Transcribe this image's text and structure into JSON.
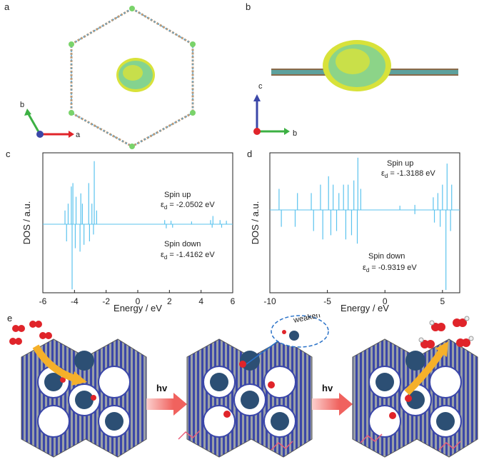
{
  "panels": {
    "a": {
      "letter": "a",
      "axis_b": "b",
      "axis_a": "a"
    },
    "b": {
      "letter": "b",
      "axis_c": "c",
      "axis_b": "b"
    },
    "c": {
      "letter": "c"
    },
    "d": {
      "letter": "d"
    },
    "e": {
      "letter": "e",
      "hv1": "hv",
      "hv2": "hv",
      "weaken": "weaken"
    }
  },
  "colors": {
    "line": "#5bc3ee",
    "yellow": "#d8e23a",
    "cyan": "#3fc6d6",
    "frame_blue": "#3b47a8",
    "frame_gray": "#9aa0a6",
    "cluster": "#2c4f74",
    "o_red": "#e0242a",
    "arrow_red": "#f0625e",
    "arrow_orange": "#f5b02a"
  },
  "chart_data": [
    {
      "id": "c",
      "type": "line",
      "title": "",
      "xlabel": "Energy / eV",
      "ylabel": "DOS / a.u.",
      "xlim": [
        -6,
        6
      ],
      "xticks": [
        "-6",
        "-4",
        "-2",
        "0",
        "2",
        "4",
        "6"
      ],
      "annotations": [
        {
          "label": "Spin up",
          "value": "ε",
          "sub": "d",
          "eq": " = -2.0502 eV"
        },
        {
          "label": "Spin down",
          "value": "ε",
          "sub": "d",
          "eq": " = -1.4162 eV"
        }
      ],
      "spikes": [
        {
          "x": -4.6,
          "y": 0.2
        },
        {
          "x": -4.4,
          "y": 0.3
        },
        {
          "x": -4.2,
          "y": 0.55
        },
        {
          "x": -4.1,
          "y": 0.6
        },
        {
          "x": -3.9,
          "y": 0.4
        },
        {
          "x": -3.6,
          "y": 0.45
        },
        {
          "x": -3.5,
          "y": 0.3
        },
        {
          "x": -3.1,
          "y": 0.6
        },
        {
          "x": -2.9,
          "y": 0.3
        },
        {
          "x": -2.75,
          "y": 0.92
        },
        {
          "x": -2.6,
          "y": 0.2
        },
        {
          "x": 1.7,
          "y": 0.06
        },
        {
          "x": 2.1,
          "y": 0.05
        },
        {
          "x": 3.4,
          "y": 0.04
        },
        {
          "x": 4.6,
          "y": 0.06
        },
        {
          "x": 4.75,
          "y": 0.12
        },
        {
          "x": 5.2,
          "y": 0.06
        },
        {
          "x": 5.6,
          "y": 0.05
        }
      ],
      "spikes_down": [
        {
          "x": -4.5,
          "y": -0.25
        },
        {
          "x": -4.15,
          "y": -0.95
        },
        {
          "x": -3.95,
          "y": -0.35
        },
        {
          "x": -3.65,
          "y": -0.4
        },
        {
          "x": -3.4,
          "y": -0.3
        },
        {
          "x": -3.05,
          "y": -0.25
        },
        {
          "x": -2.8,
          "y": -0.15
        },
        {
          "x": 1.8,
          "y": -0.06
        },
        {
          "x": 2.2,
          "y": -0.05
        },
        {
          "x": 4.7,
          "y": -0.05
        },
        {
          "x": 5.3,
          "y": -0.05
        }
      ]
    },
    {
      "id": "d",
      "type": "line",
      "title": "",
      "xlabel": "Energy / eV",
      "ylabel": "DOS / a.u.",
      "xlim": [
        -10,
        6.5
      ],
      "xticks": [
        "-10",
        "-5",
        "0",
        "5"
      ],
      "annotations": [
        {
          "label": "Spin up",
          "value": "ε",
          "sub": "d",
          "eq": " = -1.3188 eV"
        },
        {
          "label": "Spin down",
          "value": "ε",
          "sub": "d",
          "eq": " = -0.9319 eV"
        }
      ],
      "spikes": [
        {
          "x": -9.2,
          "y": 0.25
        },
        {
          "x": -7.6,
          "y": 0.2
        },
        {
          "x": -6.4,
          "y": 0.2
        },
        {
          "x": -5.6,
          "y": 0.3
        },
        {
          "x": -4.9,
          "y": 0.4
        },
        {
          "x": -4.5,
          "y": 0.3
        },
        {
          "x": -4.0,
          "y": 0.2
        },
        {
          "x": -3.6,
          "y": 0.3
        },
        {
          "x": -3.2,
          "y": 0.3
        },
        {
          "x": -2.7,
          "y": 0.35
        },
        {
          "x": -2.35,
          "y": 0.62
        },
        {
          "x": -2.1,
          "y": 0.25
        },
        {
          "x": 1.3,
          "y": 0.05
        },
        {
          "x": 2.6,
          "y": 0.06
        },
        {
          "x": 4.2,
          "y": 0.15
        },
        {
          "x": 4.6,
          "y": 0.2
        },
        {
          "x": 5.0,
          "y": 0.3
        },
        {
          "x": 5.4,
          "y": 0.55
        },
        {
          "x": 5.8,
          "y": 0.3
        }
      ],
      "spikes_down": [
        {
          "x": -9.0,
          "y": -0.2
        },
        {
          "x": -7.8,
          "y": -0.2
        },
        {
          "x": -6.2,
          "y": -0.25
        },
        {
          "x": -5.4,
          "y": -0.35
        },
        {
          "x": -4.7,
          "y": -0.3
        },
        {
          "x": -4.2,
          "y": -0.25
        },
        {
          "x": -3.4,
          "y": -0.35
        },
        {
          "x": -2.9,
          "y": -0.3
        },
        {
          "x": -2.4,
          "y": -0.4
        },
        {
          "x": 2.6,
          "y": -0.05
        },
        {
          "x": 4.3,
          "y": -0.15
        },
        {
          "x": 4.8,
          "y": -0.2
        },
        {
          "x": 5.3,
          "y": -0.95
        },
        {
          "x": 5.7,
          "y": -0.25
        }
      ]
    }
  ]
}
